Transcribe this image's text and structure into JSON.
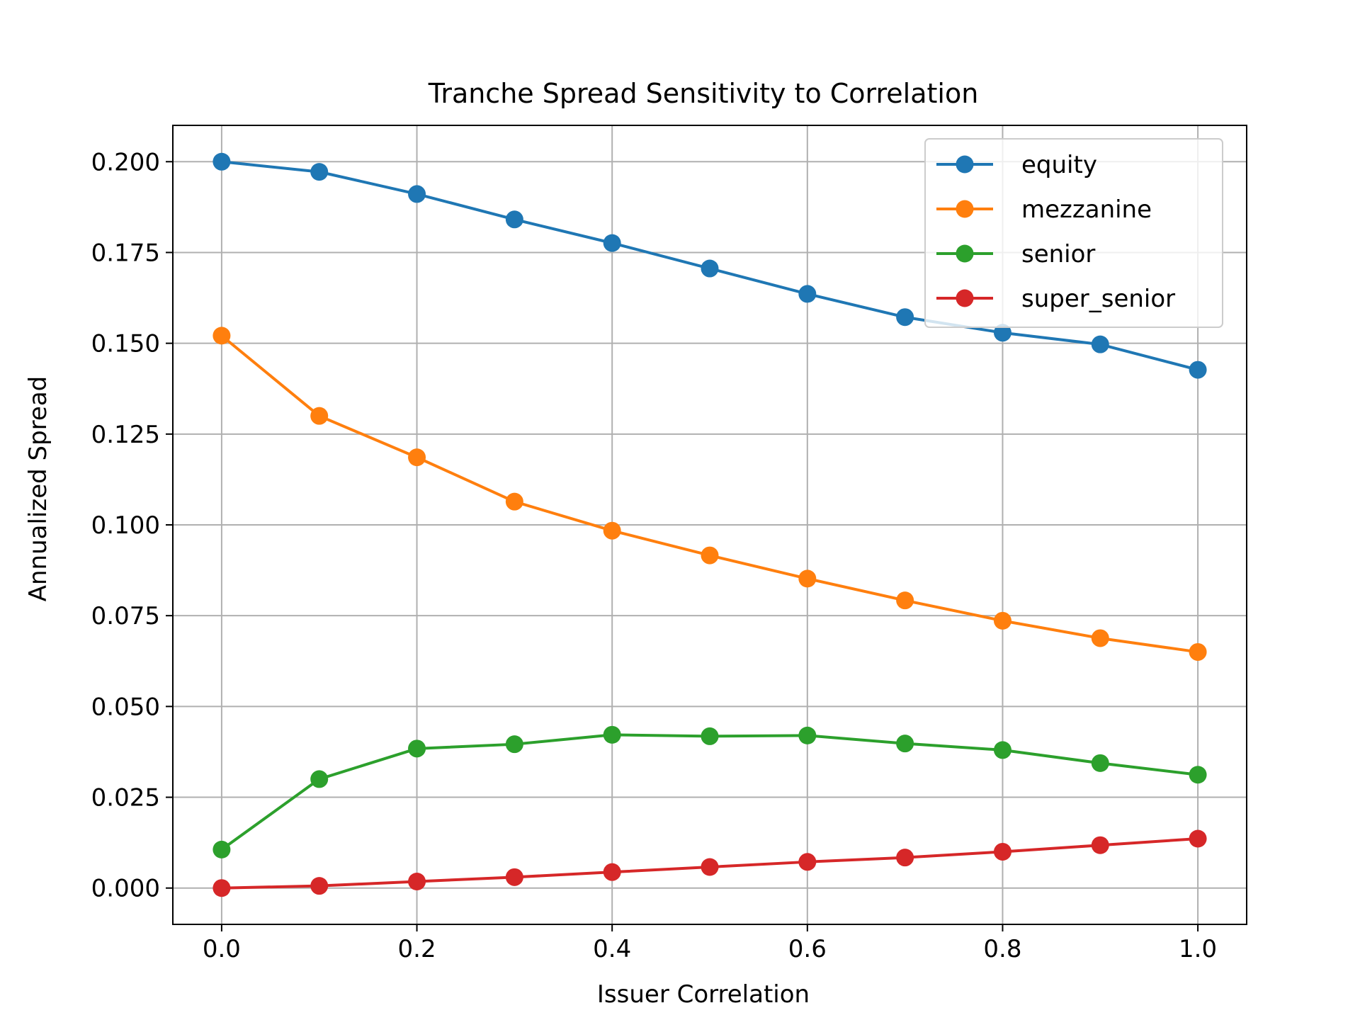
{
  "chart_data": {
    "type": "line",
    "title": "Tranche Spread Sensitivity to Correlation",
    "xlabel": "Issuer Correlation",
    "ylabel": "Annualized Spread",
    "xlim": [
      -0.05,
      1.05
    ],
    "ylim": [
      -0.01,
      0.21
    ],
    "xticks": [
      0.0,
      0.2,
      0.4,
      0.6,
      0.8,
      1.0
    ],
    "xtick_labels": [
      "0.0",
      "0.2",
      "0.4",
      "0.6",
      "0.8",
      "1.0"
    ],
    "yticks": [
      0.0,
      0.025,
      0.05,
      0.075,
      0.1,
      0.125,
      0.15,
      0.175,
      0.2
    ],
    "ytick_labels": [
      "0.000",
      "0.025",
      "0.050",
      "0.075",
      "0.100",
      "0.125",
      "0.150",
      "0.175",
      "0.200"
    ],
    "grid": true,
    "legend_position": "upper-right",
    "x": [
      0.0,
      0.1,
      0.2,
      0.3,
      0.4,
      0.5,
      0.6,
      0.7,
      0.8,
      0.9,
      1.0
    ],
    "series": [
      {
        "name": "equity",
        "color": "#1f77b4",
        "values": [
          0.2,
          0.1972,
          0.1911,
          0.1841,
          0.1776,
          0.1706,
          0.1636,
          0.1572,
          0.1529,
          0.1497,
          0.1427
        ]
      },
      {
        "name": "mezzanine",
        "color": "#ff7f0e",
        "values": [
          0.1521,
          0.13,
          0.1186,
          0.1064,
          0.0984,
          0.0916,
          0.0852,
          0.0792,
          0.0736,
          0.0688,
          0.065
        ]
      },
      {
        "name": "senior",
        "color": "#2ca02c",
        "values": [
          0.0106,
          0.03,
          0.0384,
          0.0396,
          0.0422,
          0.0418,
          0.042,
          0.0398,
          0.038,
          0.0344,
          0.0312
        ]
      },
      {
        "name": "super_senior",
        "color": "#d62728",
        "values": [
          0.0,
          0.0006,
          0.0018,
          0.003,
          0.0044,
          0.0058,
          0.0072,
          0.0084,
          0.01,
          0.0118,
          0.0136
        ]
      }
    ]
  }
}
